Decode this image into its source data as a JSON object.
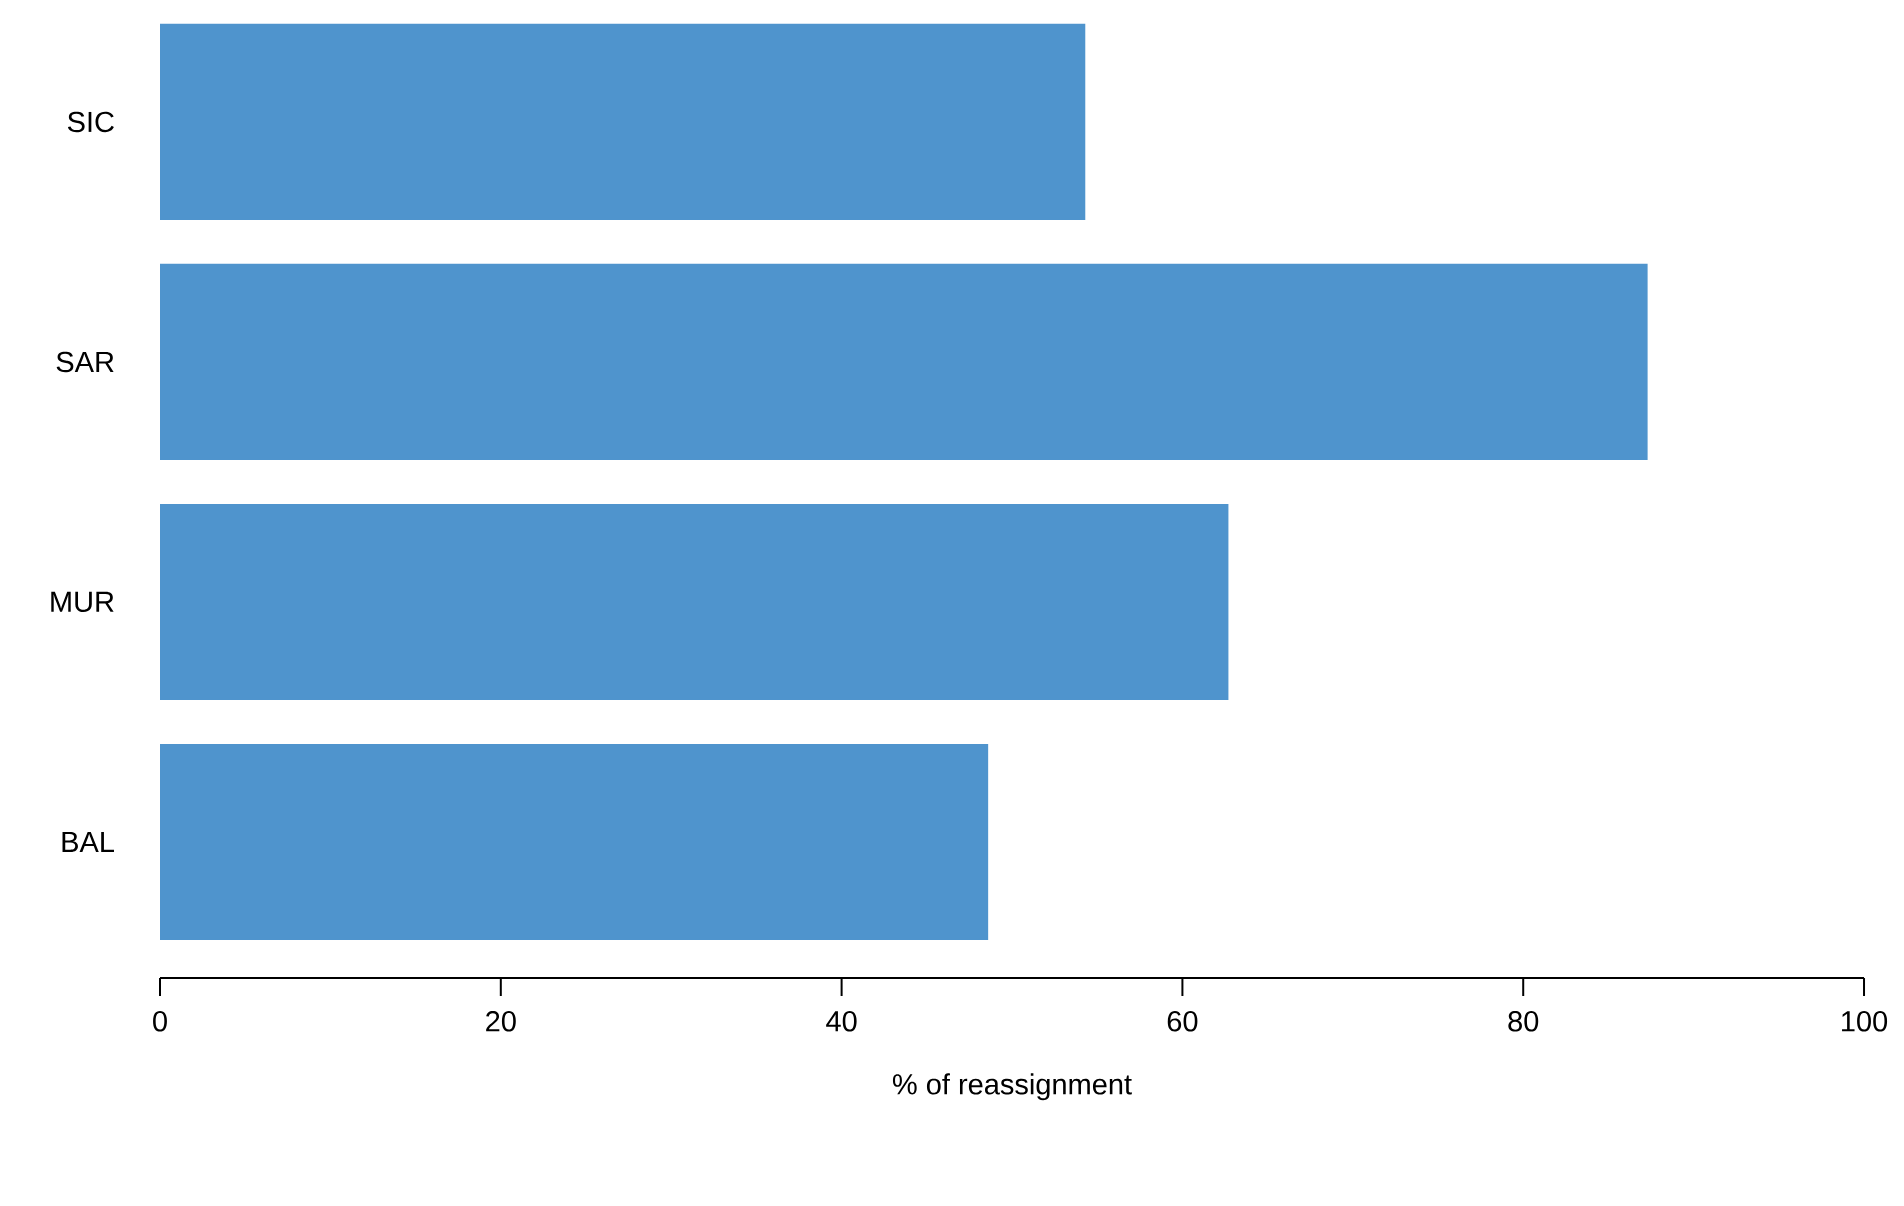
{
  "chart_data": {
    "type": "bar",
    "orientation": "horizontal",
    "xlabel": "% of reassignment",
    "categories": [
      "SIC",
      "SAR",
      "MUR",
      "BAL"
    ],
    "values": [
      54.3,
      87.3,
      62.7,
      48.6
    ],
    "color": "#4f94cd",
    "xlim": [
      0,
      100
    ],
    "xticks": [
      0,
      20,
      40,
      60,
      80,
      100
    ],
    "grid": false
  }
}
